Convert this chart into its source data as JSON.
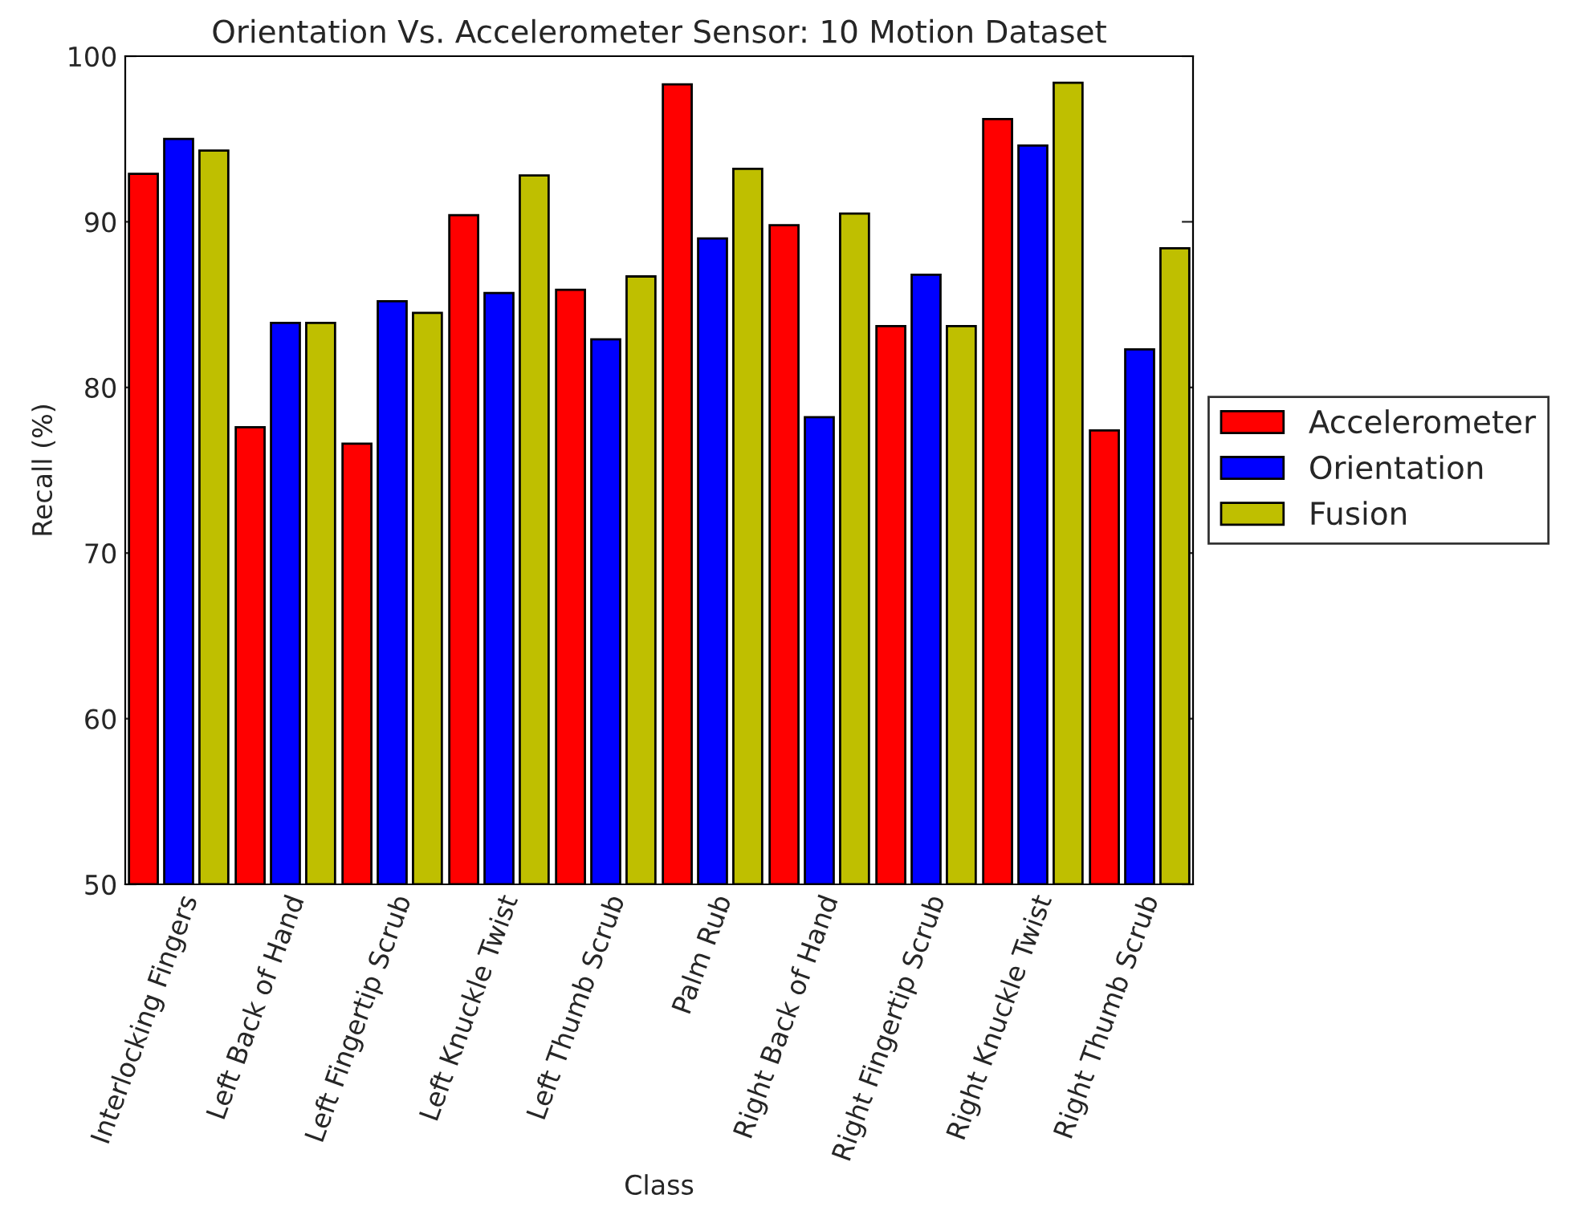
{
  "chart_data": {
    "type": "bar",
    "title": "Orientation Vs. Accelerometer Sensor: 10 Motion Dataset",
    "xlabel": "Class",
    "ylabel": "Recall (%)",
    "categories": [
      "Interlocking Fingers",
      "Left Back of Hand",
      "Left Fingertip Scrub",
      "Left Knuckle Twist",
      "Left Thumb Scrub",
      "Palm Rub",
      "Right Back of Hand",
      "Right Fingertip Scrub",
      "Right Knuckle Twist",
      "Right Thumb Scrub"
    ],
    "series": [
      {
        "name": "Accelerometer",
        "color": "#ff0000",
        "values": [
          92.9,
          77.6,
          76.6,
          90.4,
          85.9,
          98.3,
          89.8,
          83.7,
          96.2,
          77.4
        ]
      },
      {
        "name": "Orientation",
        "color": "#0000ff",
        "values": [
          95.0,
          83.9,
          85.2,
          85.7,
          82.9,
          89.0,
          78.2,
          86.8,
          94.6,
          82.3
        ]
      },
      {
        "name": "Fusion",
        "color": "#bfbf00",
        "values": [
          94.3,
          83.9,
          84.5,
          92.8,
          86.7,
          93.2,
          90.5,
          83.7,
          98.4,
          88.4
        ]
      }
    ],
    "ylim": [
      50,
      100
    ],
    "yticks": [
      50,
      60,
      70,
      80,
      90,
      100
    ],
    "grid": false,
    "legend": "right"
  }
}
